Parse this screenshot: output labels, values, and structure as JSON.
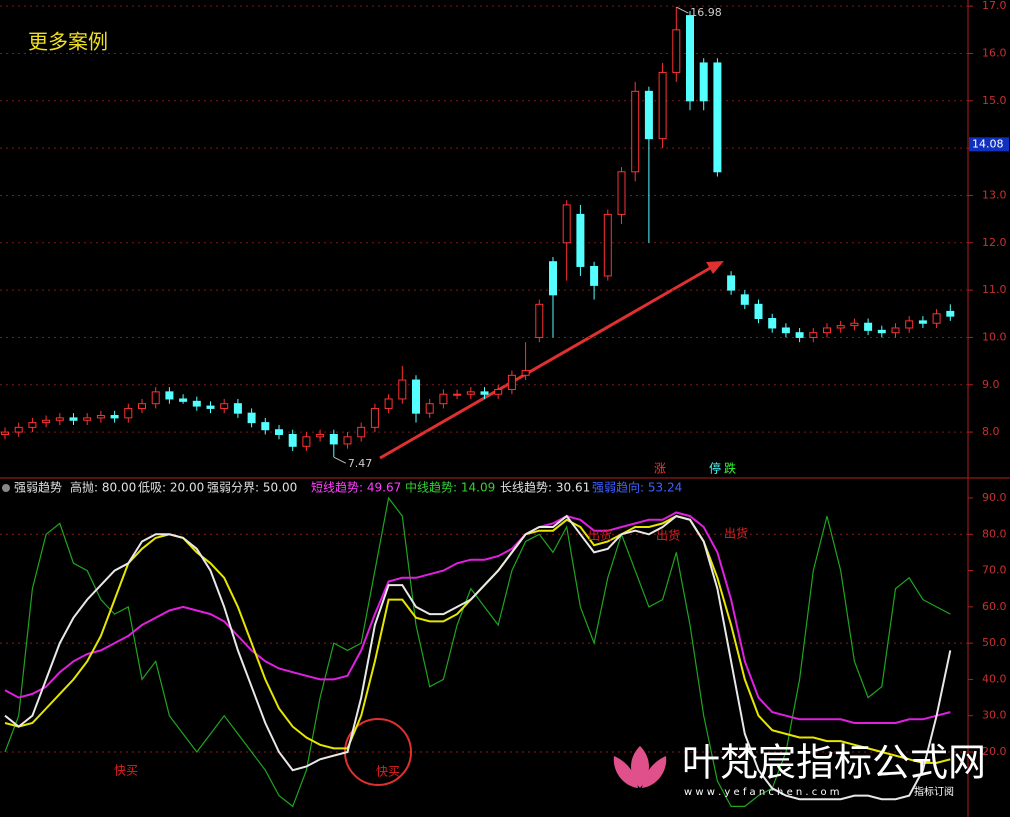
{
  "chart_data": [
    {
      "type": "candlestick",
      "title": "更多案例",
      "open": [
        7.95,
        8.0,
        8.1,
        8.2,
        8.25,
        8.3,
        8.25,
        8.3,
        8.35,
        8.3,
        8.5,
        8.6,
        8.85,
        8.7,
        8.65,
        8.55,
        8.5,
        8.6,
        8.4,
        8.2,
        8.05,
        7.95,
        7.7,
        7.9,
        7.95,
        7.75,
        7.9,
        8.1,
        8.5,
        8.7,
        9.1,
        8.4,
        8.6,
        8.8,
        8.8,
        8.85,
        8.8,
        8.9,
        9.2,
        10.0,
        11.6,
        12.0,
        12.6,
        11.5,
        11.3,
        12.6,
        13.5,
        15.2,
        14.2,
        15.6,
        16.8,
        15.8,
        15.8,
        11.3,
        10.9,
        10.7,
        10.4,
        10.2,
        10.1,
        10.0,
        10.1,
        10.2,
        10.25,
        10.3,
        10.15,
        10.1,
        10.2,
        10.35,
        10.3,
        10.55
      ],
      "high": [
        8.1,
        8.2,
        8.3,
        8.35,
        8.4,
        8.4,
        8.4,
        8.45,
        8.45,
        8.6,
        8.7,
        8.95,
        8.95,
        8.8,
        8.75,
        8.65,
        8.7,
        8.7,
        8.5,
        8.3,
        8.15,
        8.05,
        8.0,
        8.05,
        8.05,
        8.0,
        8.2,
        8.6,
        8.8,
        9.4,
        9.2,
        8.7,
        8.9,
        8.9,
        8.95,
        8.95,
        9.0,
        9.3,
        9.9,
        10.8,
        11.7,
        12.9,
        12.8,
        11.6,
        12.7,
        13.6,
        15.4,
        15.3,
        15.8,
        16.98,
        16.9,
        15.9,
        15.9,
        11.4,
        11.0,
        10.8,
        10.5,
        10.3,
        10.2,
        10.2,
        10.3,
        10.35,
        10.4,
        10.4,
        10.25,
        10.3,
        10.45,
        10.45,
        10.6,
        10.7
      ],
      "low": [
        7.85,
        7.9,
        8.0,
        8.1,
        8.15,
        8.15,
        8.15,
        8.2,
        8.2,
        8.2,
        8.4,
        8.5,
        8.6,
        8.6,
        8.45,
        8.4,
        8.4,
        8.3,
        8.1,
        7.95,
        7.85,
        7.6,
        7.6,
        7.8,
        7.47,
        7.65,
        7.8,
        8.0,
        8.4,
        8.6,
        8.2,
        8.3,
        8.5,
        8.7,
        8.7,
        8.7,
        8.7,
        8.8,
        9.1,
        9.9,
        10.0,
        11.2,
        11.3,
        10.8,
        11.2,
        12.4,
        13.3,
        12.0,
        14.0,
        15.4,
        14.8,
        14.8,
        13.4,
        10.9,
        10.6,
        10.3,
        10.1,
        10.0,
        9.9,
        9.9,
        10.0,
        10.1,
        10.15,
        10.05,
        10.0,
        10.0,
        10.1,
        10.2,
        10.2,
        10.35
      ],
      "close": [
        8.0,
        8.1,
        8.2,
        8.25,
        8.3,
        8.25,
        8.3,
        8.35,
        8.3,
        8.5,
        8.6,
        8.85,
        8.7,
        8.65,
        8.55,
        8.5,
        8.6,
        8.4,
        8.2,
        8.05,
        7.95,
        7.7,
        7.9,
        7.95,
        7.75,
        7.9,
        8.1,
        8.5,
        8.7,
        9.1,
        8.4,
        8.6,
        8.8,
        8.8,
        8.85,
        8.8,
        8.9,
        9.2,
        9.3,
        10.7,
        10.9,
        12.8,
        11.5,
        11.1,
        12.6,
        13.5,
        15.2,
        14.2,
        15.6,
        16.5,
        15.0,
        15.0,
        13.5,
        11.0,
        10.7,
        10.4,
        10.2,
        10.1,
        10.0,
        10.1,
        10.2,
        10.25,
        10.3,
        10.15,
        10.1,
        10.2,
        10.35,
        10.3,
        10.5,
        10.45
      ],
      "up_color": "#ff3232",
      "down_color": "#54ffff",
      "ylim": [
        7.03,
        17.13
      ],
      "yticks": [
        {
          "value": 8,
          "label": "8.0"
        },
        {
          "value": 9,
          "label": "9.0"
        },
        {
          "value": 10,
          "label": "10.0"
        },
        {
          "value": 11,
          "label": "11.0"
        },
        {
          "value": 12,
          "label": "12.0"
        },
        {
          "value": 13,
          "label": "13.0"
        },
        {
          "value": 14,
          "label": "14.0"
        },
        {
          "value": 15,
          "label": "15.0"
        },
        {
          "value": 16,
          "label": "16.0"
        },
        {
          "value": 17,
          "label": "17.0"
        }
      ],
      "grid": true,
      "price_marker": 14.08,
      "signals": [
        {
          "text": "涨",
          "color": "#ff3232"
        },
        {
          "text": "停",
          "color": "#54ffff"
        },
        {
          "text": "跌",
          "color": "#32ff32"
        }
      ]
    },
    {
      "type": "line",
      "header": [
        {
          "text": "强弱趋势",
          "color": "#e0e0e0"
        },
        {
          "text": "高抛: 80.00",
          "color": "#e0e0e0"
        },
        {
          "text": "低吸: 20.00",
          "color": "#e0e0e0"
        },
        {
          "text": "强弱分界: 50.00",
          "color": "#e0e0e0"
        },
        {
          "text": "短线趋势: 49.67",
          "color": "#ff40ff"
        },
        {
          "text": "中线趋势: 14.09",
          "color": "#32d232"
        },
        {
          "text": "长线趋势: 30.61",
          "color": "#e0e0e0"
        },
        {
          "text": "强弱趋向: 53.24",
          "color": "#4060ff"
        }
      ],
      "series": [
        {
          "color": "#1fa51f",
          "values": [
            20,
            30,
            65,
            80,
            83,
            72,
            70,
            62,
            58,
            60,
            40,
            45,
            30,
            25,
            20,
            25,
            30,
            25,
            20,
            15,
            8,
            5,
            15,
            35,
            50,
            48,
            50,
            70,
            90,
            85,
            55,
            38,
            40,
            55,
            65,
            60,
            55,
            70,
            78,
            80,
            75,
            82,
            60,
            50,
            68,
            80,
            70,
            60,
            62,
            75,
            55,
            30,
            12,
            5,
            5,
            8,
            10,
            20,
            40,
            70,
            85,
            70,
            45,
            35,
            38,
            65,
            68,
            62,
            60,
            58
          ]
        },
        {
          "color": "#e020e0",
          "values": [
            37,
            35,
            36,
            38,
            42,
            45,
            47,
            48,
            50,
            52,
            55,
            57,
            59,
            60,
            59,
            58,
            56,
            52,
            48,
            45,
            43,
            42,
            41,
            40,
            40,
            41,
            48,
            58,
            67,
            68,
            68,
            69,
            70,
            72,
            73,
            73,
            74,
            76,
            80,
            82,
            83,
            85,
            84,
            81,
            81,
            82,
            83,
            84,
            84,
            86,
            85,
            82,
            75,
            62,
            45,
            35,
            31,
            30,
            29,
            29,
            29,
            29,
            28,
            28,
            28,
            28,
            29,
            29,
            30,
            31
          ]
        },
        {
          "color": "#e6e600",
          "values": [
            28,
            27,
            28,
            32,
            36,
            40,
            45,
            52,
            62,
            72,
            76,
            79,
            80,
            79,
            75,
            72,
            68,
            60,
            50,
            40,
            32,
            27,
            24,
            22,
            21,
            21,
            30,
            45,
            62,
            62,
            57,
            56,
            56,
            58,
            62,
            66,
            70,
            75,
            80,
            81,
            81,
            84,
            82,
            77,
            78,
            80,
            82,
            82,
            83,
            85,
            84,
            78,
            68,
            55,
            40,
            30,
            26,
            25,
            24,
            24,
            23,
            23,
            22,
            21,
            20,
            19,
            18,
            17,
            17,
            18
          ]
        },
        {
          "color": "#e8e8e8",
          "values": [
            30,
            27,
            30,
            40,
            50,
            57,
            62,
            66,
            70,
            72,
            78,
            80,
            80,
            79,
            76,
            70,
            60,
            48,
            38,
            28,
            20,
            15,
            16,
            18,
            19,
            20,
            35,
            55,
            66,
            66,
            60,
            58,
            58,
            60,
            62,
            66,
            70,
            75,
            80,
            82,
            82,
            85,
            80,
            75,
            76,
            80,
            81,
            80,
            82,
            85,
            84,
            78,
            65,
            45,
            25,
            15,
            10,
            8,
            7,
            7,
            7,
            7,
            8,
            8,
            7,
            7,
            8,
            15,
            30,
            48
          ]
        }
      ],
      "ylim": [
        2.09,
        95.51
      ],
      "yticks": [
        {
          "value": 20,
          "label": "20.0"
        },
        {
          "value": 30,
          "label": "30.0"
        },
        {
          "value": 40,
          "label": "40.0"
        },
        {
          "value": 50,
          "label": "50.0"
        },
        {
          "value": 60,
          "label": "60.0"
        },
        {
          "value": 70,
          "label": "70.0"
        },
        {
          "value": 80,
          "label": "80.0"
        },
        {
          "value": 90,
          "label": "90.0"
        }
      ],
      "reference_lines": [
        20,
        50,
        80
      ],
      "annotations": [
        "快买",
        "快买",
        "出货",
        "出货",
        "出货"
      ]
    }
  ],
  "watermark": {
    "title": "叶梵宸指标公式网",
    "url": "w w w . y e f a n c h e n . c o m",
    "tag": "指标订阅"
  }
}
